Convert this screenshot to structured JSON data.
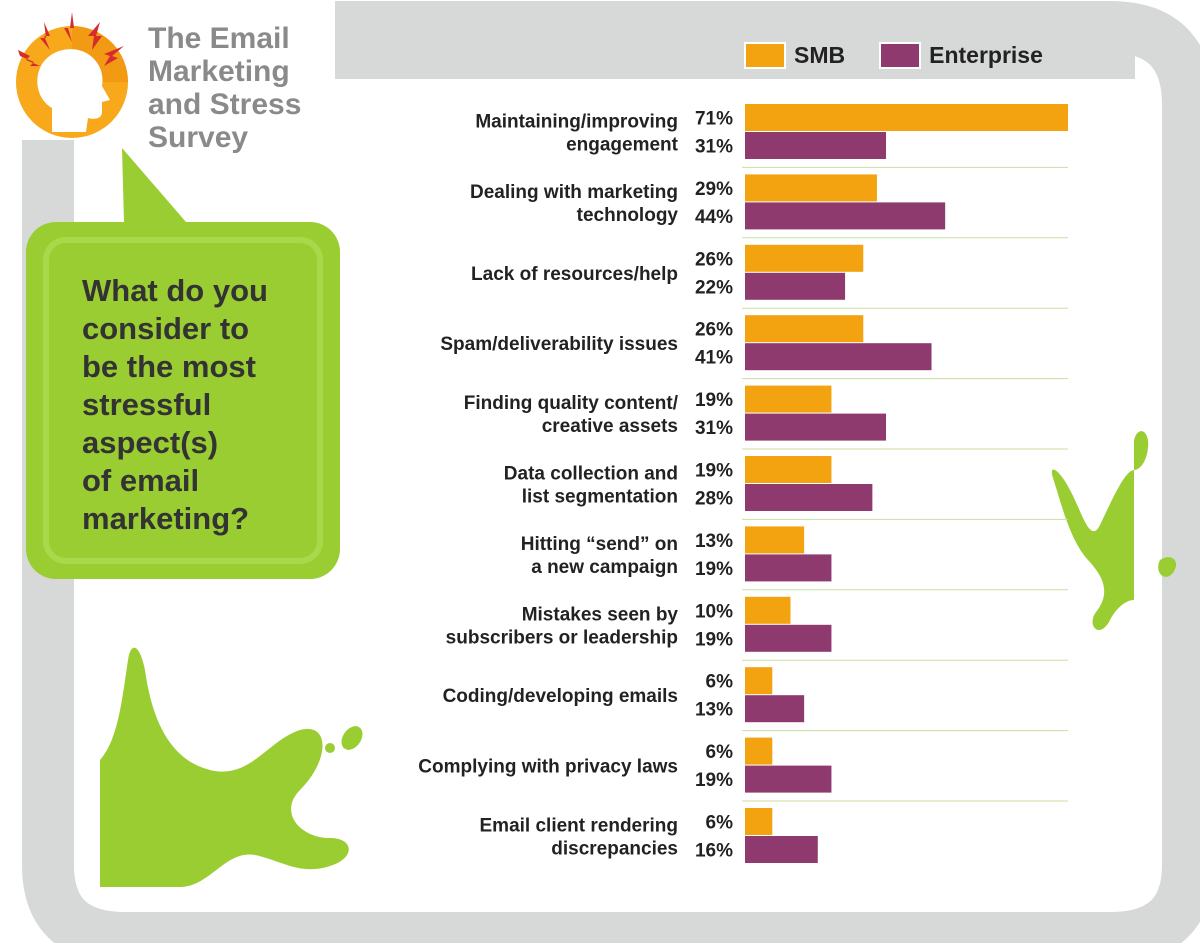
{
  "header": {
    "survey_title_lines": [
      "The Email",
      "Marketing",
      "and Stress",
      "Survey"
    ]
  },
  "question": {
    "lines": [
      "What do you",
      "consider to",
      "be the most",
      "stressful",
      "aspect(s)",
      "of email",
      "marketing?"
    ]
  },
  "icons": {
    "logo": "stressed-head-icon",
    "splat_left": "green-splat-icon",
    "splat_right": "green-splat-icon"
  },
  "colors": {
    "smb": "#F2A30F",
    "enterprise": "#8E3A6E",
    "accent_green": "#9ACD32",
    "frame_gray": "#D7D9D8",
    "logo_orange": "#F7A81B",
    "bolt_red": "#D62C2C"
  },
  "chart_data": {
    "type": "bar",
    "orientation": "horizontal",
    "legend_position": "top-right",
    "grid": false,
    "xlim": [
      0,
      71
    ],
    "categories": [
      [
        "Maintaining/improving",
        "engagement"
      ],
      [
        "Dealing with marketing",
        "technology"
      ],
      [
        "Lack of resources/help"
      ],
      [
        "Spam/deliverability issues"
      ],
      [
        "Finding quality content/",
        "creative assets"
      ],
      [
        "Data collection and",
        "list segmentation"
      ],
      [
        "Hitting “send” on",
        "a new campaign"
      ],
      [
        "Mistakes seen by",
        "subscribers or leadership"
      ],
      [
        "Coding/developing emails"
      ],
      [
        "Complying with privacy laws"
      ],
      [
        "Email client rendering",
        "discrepancies"
      ]
    ],
    "series": [
      {
        "name": "SMB",
        "color": "#F2A30F",
        "values": [
          71,
          29,
          26,
          26,
          19,
          19,
          13,
          10,
          6,
          6,
          6
        ],
        "labels": [
          "71%",
          "29%",
          "26%",
          "26%",
          "19%",
          "19%",
          "13%",
          "10%",
          "6%",
          "6%",
          "6%"
        ]
      },
      {
        "name": "Enterprise",
        "color": "#8E3A6E",
        "values": [
          31,
          44,
          22,
          41,
          31,
          28,
          19,
          19,
          13,
          19,
          16
        ],
        "labels": [
          "31%",
          "44%",
          "22%",
          "41%",
          "31%",
          "28%",
          "19%",
          "19%",
          "13%",
          "19%",
          "16%"
        ]
      }
    ]
  }
}
